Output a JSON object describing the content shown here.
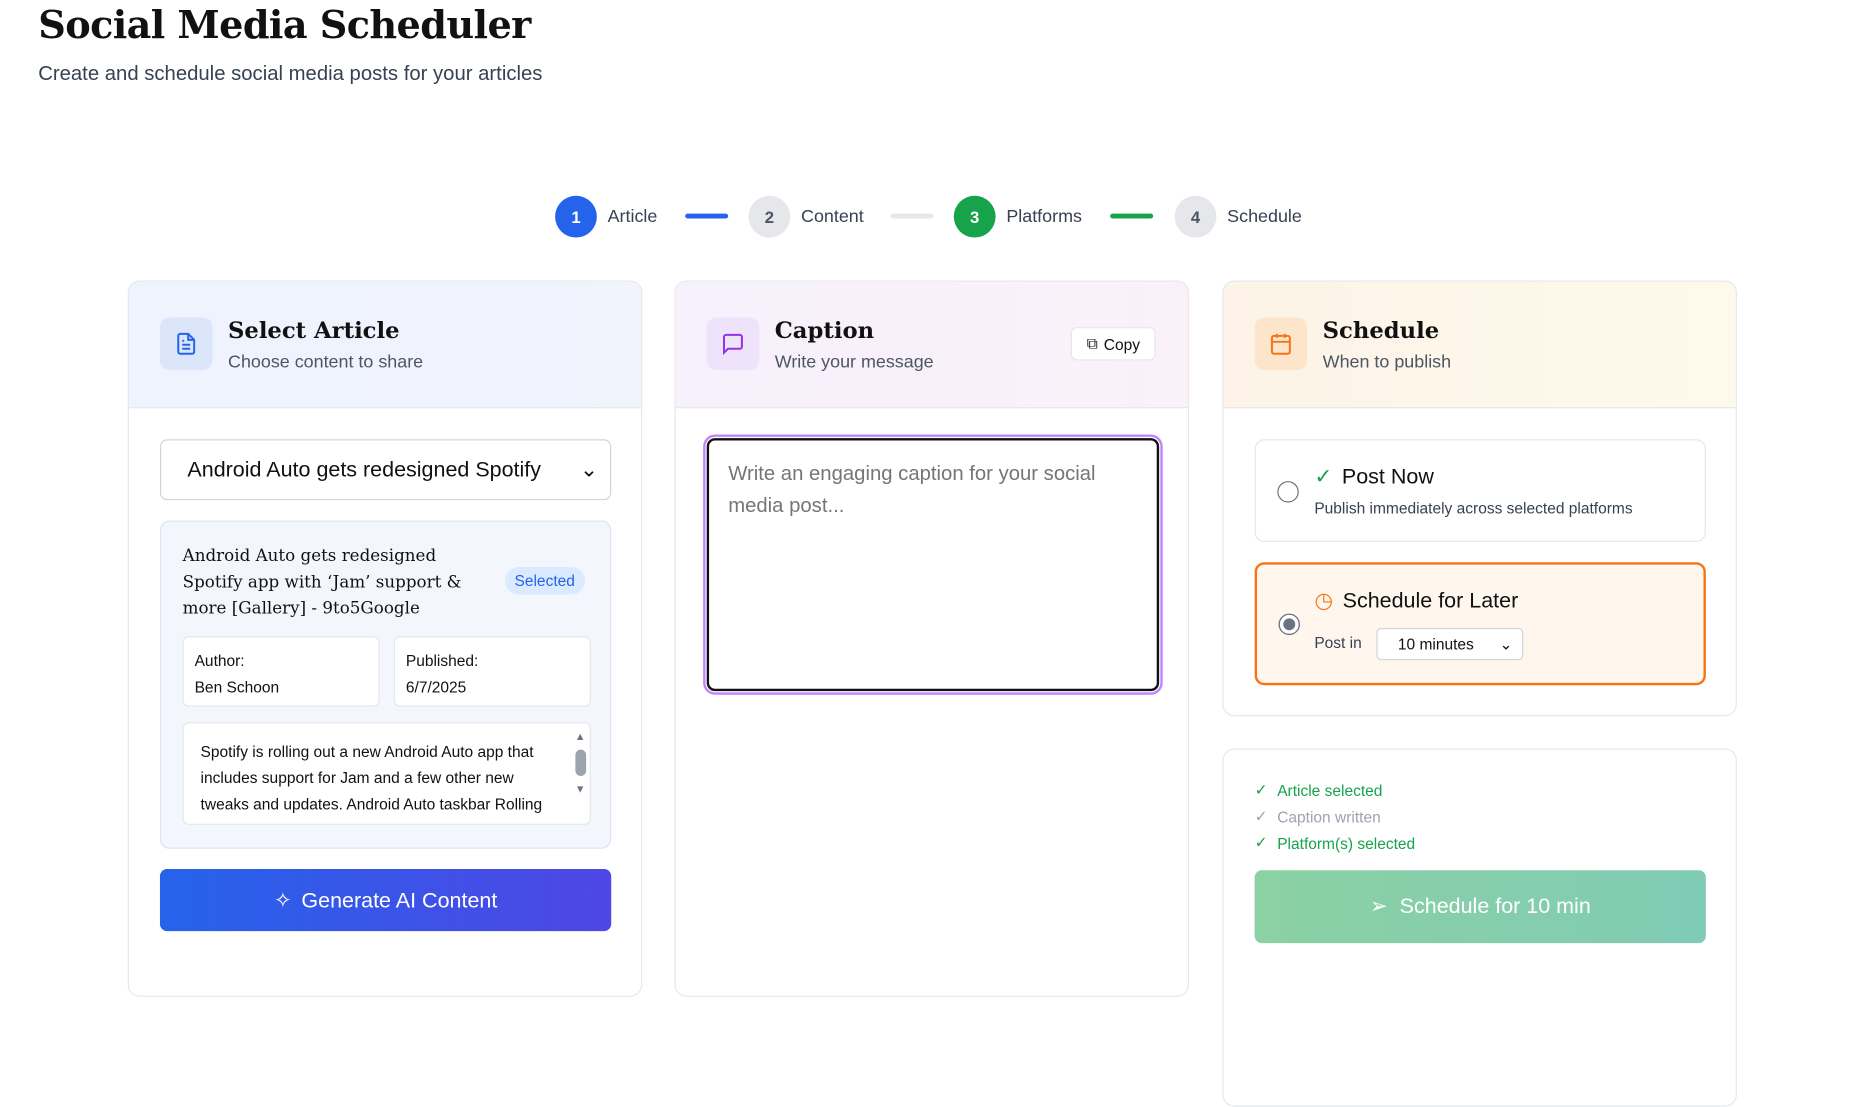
{
  "header": {
    "title": "Social Media Scheduler",
    "subtitle": "Create and schedule social media posts for your articles"
  },
  "steps": [
    {
      "num": "1",
      "label": "Article",
      "state": "active",
      "color": "#2563eb"
    },
    {
      "num": "2",
      "label": "Content",
      "state": "pending"
    },
    {
      "num": "3",
      "label": "Platforms",
      "state": "complete",
      "color": "#16a34a"
    },
    {
      "num": "4",
      "label": "Schedule",
      "state": "pending"
    }
  ],
  "article_card": {
    "title": "Select Article",
    "subtitle": "Choose content to share",
    "icon": "document-icon",
    "select_value": "Android Auto gets redesigned Spotify",
    "article_title": "Android Auto gets redesigned Spotify app with ‘Jam’ support & more [Gallery] - 9to5Google",
    "badge": "Selected",
    "author_label": "Author:",
    "author": "Ben Schoon",
    "published_label": "Published:",
    "published": "6/7/2025",
    "excerpt": "Spotify is rolling out a new Android Auto app that includes support for Jam and a few other new tweaks and updates. Android Auto taskbar Rolling out",
    "generate_label": "Generate AI Content"
  },
  "caption_card": {
    "title": "Caption",
    "subtitle": "Write your message",
    "copy_label": "Copy",
    "placeholder": "Write an engaging caption for your social media post...",
    "value": ""
  },
  "schedule_card": {
    "title": "Schedule",
    "subtitle": "When to publish",
    "post_now": {
      "label": "Post Now",
      "description": "Publish immediately across selected platforms",
      "selected": false
    },
    "later": {
      "label": "Schedule for Later",
      "post_in_label": "Post in",
      "post_in_value": "10 minutes",
      "selected": true
    }
  },
  "checklist": [
    {
      "label": "Article selected",
      "done": true
    },
    {
      "label": "Caption written",
      "done": false
    },
    {
      "label": "Platform(s) selected",
      "done": true
    }
  ],
  "submit_label": "Schedule for 10 min",
  "colors": {
    "blue": "#2563eb",
    "green": "#16a34a",
    "orange": "#f97316",
    "purple": "#9333ea"
  }
}
